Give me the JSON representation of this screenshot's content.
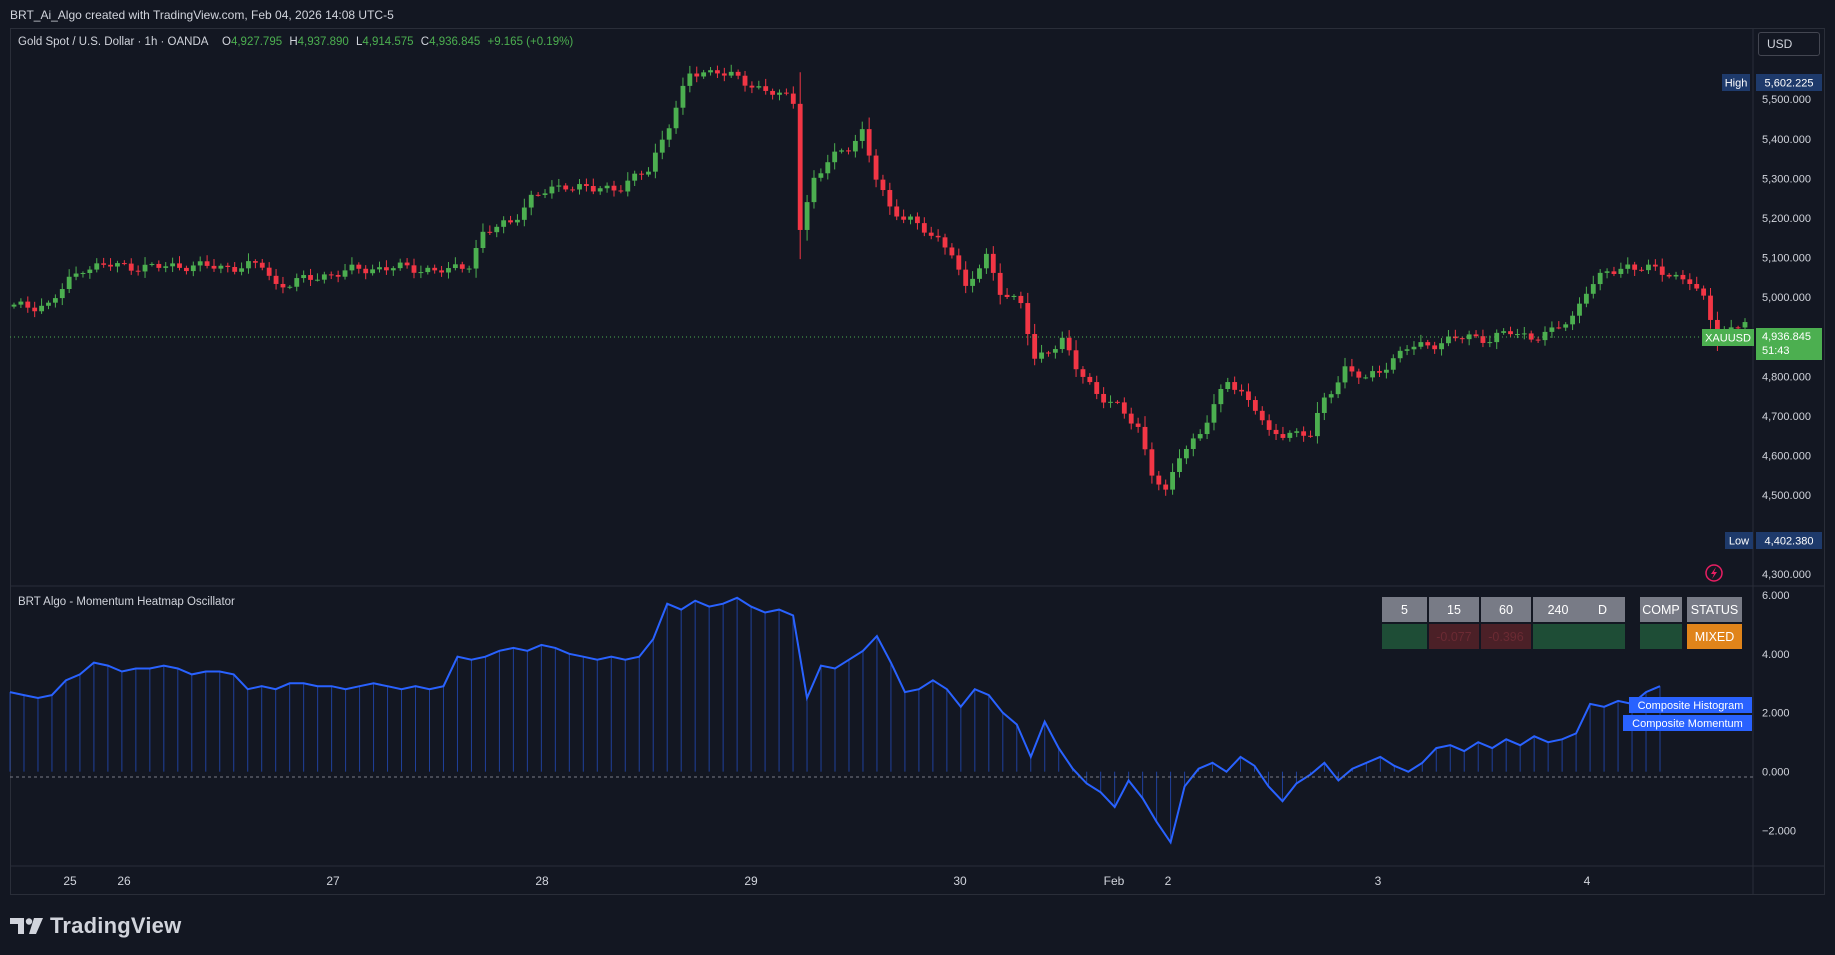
{
  "header": {
    "attribution": "BRT_Ai_Algo created with TradingView.com, Feb 04, 2026 14:08 UTC-5"
  },
  "main_pane": {
    "symbol_title": "Gold Spot / U.S. Dollar · 1h · OANDA",
    "ohlc": {
      "o_label": "O",
      "o": "4,927.795",
      "h_label": "H",
      "h": "4,937.890",
      "l_label": "L",
      "l": "4,914.575",
      "c_label": "C",
      "c": "4,936.845",
      "change": "+9.165 (+0.19%)"
    },
    "currency_button": "USD",
    "high_label": "High",
    "high_value": "5,602.225",
    "low_label": "Low",
    "low_value": "4,402.380",
    "price_label": {
      "symbol": "XAUUSD",
      "price": "4,936.845",
      "countdown": "51:43"
    },
    "price_ticks": [
      "5,500.000",
      "5,400.000",
      "5,300.000",
      "5,200.000",
      "5,100.000",
      "5,000.000",
      "4,800.000",
      "4,700.000",
      "4,600.000",
      "4,500.000",
      "4,300.000"
    ]
  },
  "indicator_pane": {
    "title": "BRT Algo - Momentum Heatmap Oscillator",
    "ticks": [
      "6.000",
      "4.000",
      "2.000",
      "0.000",
      "−2.000"
    ],
    "legend": [
      "Composite Histogram",
      "Composite Momentum"
    ],
    "table": {
      "headers": [
        "5",
        "15",
        "60",
        "240",
        "D",
        "COMP",
        "STATUS"
      ],
      "values": [
        "",
        "-0.077",
        "-0.396",
        "",
        "",
        "",
        "MIXED"
      ]
    }
  },
  "time_axis": {
    "labels": [
      "25",
      "26",
      "27",
      "28",
      "29",
      "30",
      "Feb",
      "2",
      "3",
      "4"
    ]
  },
  "brand": {
    "name": "TradingView"
  },
  "colors": {
    "background": "#131722",
    "up": "#26a69a",
    "up_candle": "#4caf50",
    "down_candle": "#f23645",
    "momentum_line": "#2962ff",
    "status_mixed": "#e0841a"
  },
  "chart_data": [
    {
      "type": "candlestick",
      "title": "Gold Spot / U.S. Dollar · 1h · OANDA",
      "y_axis_side": "right",
      "ylim": [
        4270,
        5680
      ],
      "grid": false,
      "high": 5602.225,
      "low": 4402.38,
      "last_price": 4936.845,
      "note_x": "hourly bars, Jan 25 – Feb 4, 2026",
      "close_path": [
        [
          0,
          4975
        ],
        [
          5,
          4980
        ],
        [
          8,
          5040
        ],
        [
          10,
          5075
        ],
        [
          14,
          5080
        ],
        [
          20,
          5075
        ],
        [
          25,
          5080
        ],
        [
          30,
          5075
        ],
        [
          36,
          5080
        ],
        [
          38,
          5030
        ],
        [
          40,
          5035
        ],
        [
          45,
          5055
        ],
        [
          50,
          5070
        ],
        [
          55,
          5075
        ],
        [
          60,
          5070
        ],
        [
          63,
          5065
        ],
        [
          66,
          5085
        ],
        [
          68,
          5160
        ],
        [
          72,
          5190
        ],
        [
          75,
          5250
        ],
        [
          80,
          5285
        ],
        [
          84,
          5270
        ],
        [
          88,
          5280
        ],
        [
          92,
          5320
        ],
        [
          94,
          5400
        ],
        [
          96,
          5480
        ],
        [
          98,
          5560
        ],
        [
          102,
          5575
        ],
        [
          106,
          5540
        ],
        [
          110,
          5520
        ],
        [
          113,
          5490
        ],
        [
          114,
          5180
        ],
        [
          116,
          5300
        ],
        [
          118,
          5340
        ],
        [
          121,
          5380
        ],
        [
          123,
          5420
        ],
        [
          125,
          5300
        ],
        [
          127,
          5220
        ],
        [
          130,
          5200
        ],
        [
          133,
          5150
        ],
        [
          136,
          5120
        ],
        [
          138,
          5020
        ],
        [
          141,
          5100
        ],
        [
          143,
          5020
        ],
        [
          146,
          4980
        ],
        [
          148,
          4840
        ],
        [
          150,
          4870
        ],
        [
          152,
          4890
        ],
        [
          154,
          4820
        ],
        [
          157,
          4760
        ],
        [
          160,
          4720
        ],
        [
          163,
          4670
        ],
        [
          165,
          4560
        ],
        [
          167,
          4500
        ],
        [
          169,
          4600
        ],
        [
          172,
          4660
        ],
        [
          174,
          4720
        ],
        [
          176,
          4790
        ],
        [
          178,
          4760
        ],
        [
          180,
          4720
        ],
        [
          182,
          4650
        ],
        [
          185,
          4660
        ],
        [
          188,
          4650
        ],
        [
          190,
          4740
        ],
        [
          193,
          4820
        ],
        [
          196,
          4790
        ],
        [
          199,
          4830
        ],
        [
          202,
          4870
        ],
        [
          205,
          4880
        ],
        [
          208,
          4890
        ],
        [
          211,
          4900
        ],
        [
          214,
          4895
        ],
        [
          217,
          4910
        ],
        [
          220,
          4900
        ],
        [
          223,
          4910
        ],
        [
          226,
          4950
        ],
        [
          228,
          5020
        ],
        [
          231,
          5060
        ],
        [
          234,
          5080
        ],
        [
          237,
          5070
        ],
        [
          240,
          5060
        ],
        [
          243,
          5040
        ],
        [
          245,
          4990
        ],
        [
          247,
          4900
        ],
        [
          249,
          4920
        ],
        [
          251,
          4936
        ]
      ]
    },
    {
      "type": "line",
      "title": "BRT Algo - Momentum Heatmap Oscillator",
      "ylim": [
        -3.2,
        6.3
      ],
      "zero_line": "dashed",
      "series": [
        {
          "name": "Composite Momentum",
          "style": "line with histogram",
          "values": [
            2.7,
            2.6,
            2.5,
            2.6,
            3.1,
            3.3,
            3.7,
            3.6,
            3.4,
            3.5,
            3.5,
            3.6,
            3.5,
            3.3,
            3.4,
            3.4,
            3.3,
            2.8,
            2.9,
            2.8,
            3.0,
            3.0,
            2.9,
            2.9,
            2.8,
            2.9,
            3.0,
            2.9,
            2.8,
            2.9,
            2.8,
            2.9,
            3.9,
            3.8,
            3.9,
            4.1,
            4.2,
            4.1,
            4.3,
            4.2,
            4.0,
            3.9,
            3.8,
            3.9,
            3.8,
            3.9,
            4.5,
            5.7,
            5.5,
            5.8,
            5.6,
            5.7,
            5.9,
            5.6,
            5.4,
            5.5,
            5.3,
            2.5,
            3.6,
            3.5,
            3.8,
            4.1,
            4.6,
            3.7,
            2.7,
            2.8,
            3.1,
            2.8,
            2.2,
            2.8,
            2.6,
            2.0,
            1.6,
            0.5,
            1.7,
            0.8,
            0.1,
            -0.4,
            -0.7,
            -1.2,
            -0.3,
            -0.9,
            -1.7,
            -2.4,
            -0.5,
            0.1,
            0.3,
            0.0,
            0.5,
            0.2,
            -0.5,
            -1.0,
            -0.4,
            -0.1,
            0.3,
            -0.3,
            0.1,
            0.3,
            0.5,
            0.2,
            0.0,
            0.3,
            0.8,
            0.9,
            0.7,
            1.0,
            0.8,
            1.1,
            0.9,
            1.2,
            1.0,
            1.1,
            1.3,
            2.3,
            2.2,
            2.4,
            2.3,
            2.7,
            2.9
          ]
        }
      ]
    }
  ]
}
